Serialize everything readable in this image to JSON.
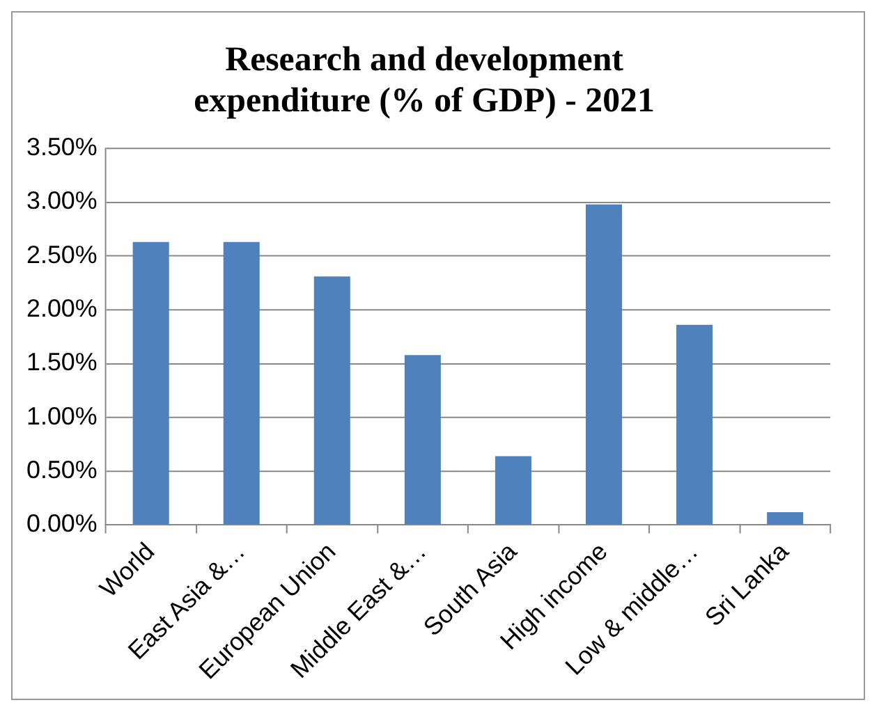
{
  "chart_data": {
    "type": "bar",
    "title": "Research and development expenditure (% of GDP) - 2021",
    "categories": [
      "World",
      "East Asia &…",
      "European Union",
      "Middle East &…",
      "South Asia",
      "High income",
      "Low & middle…",
      "Sri Lanka"
    ],
    "values": [
      2.63,
      2.63,
      2.31,
      1.58,
      0.64,
      2.98,
      1.86,
      0.12
    ],
    "color": "#4f81bd",
    "ylim": [
      0,
      3.5
    ],
    "yticks": [
      {
        "value": 0,
        "label": "0.00%"
      },
      {
        "value": 0.5,
        "label": "0.50%"
      },
      {
        "value": 1,
        "label": "1.00%"
      },
      {
        "value": 1.5,
        "label": "1.50%"
      },
      {
        "value": 2,
        "label": "2.00%"
      },
      {
        "value": 2.5,
        "label": "2.50%"
      },
      {
        "value": 3,
        "label": "3.00%"
      },
      {
        "value": 3.5,
        "label": "3.50%"
      }
    ],
    "grid": "y",
    "legend": false
  }
}
